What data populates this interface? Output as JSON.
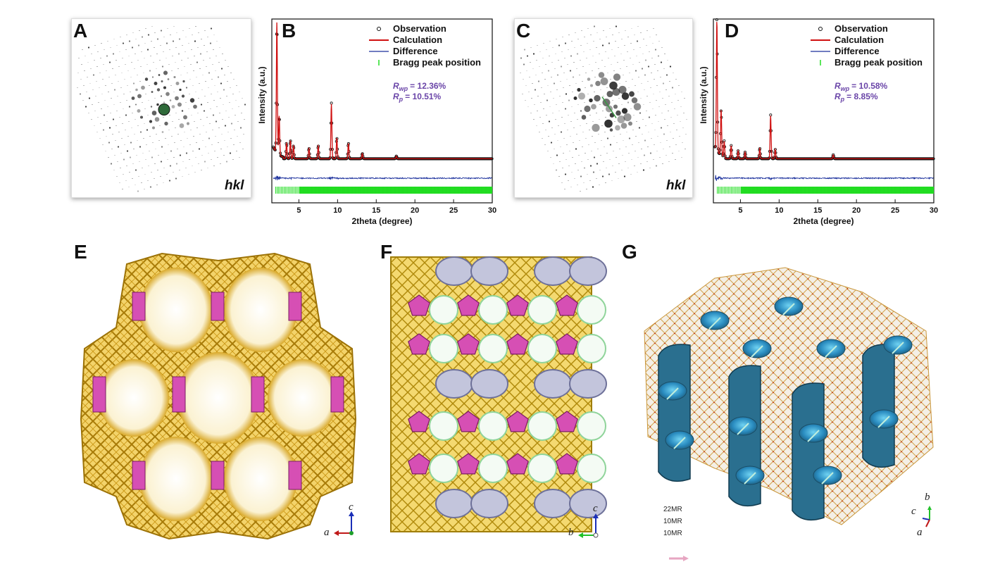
{
  "panels": {
    "A": {
      "letter": "A",
      "label": "hkl"
    },
    "B": {
      "letter": "B"
    },
    "C": {
      "letter": "C",
      "label": "hkl"
    },
    "D": {
      "letter": "D"
    },
    "E": {
      "letter": "E",
      "axis_v": "c",
      "axis_h": "a"
    },
    "F": {
      "letter": "F",
      "axis_v": "c",
      "axis_h": "b"
    },
    "G": {
      "letter": "G",
      "axis_labels": [
        "b",
        "c",
        "a"
      ],
      "pore_labels": [
        "22MR",
        "10MR",
        "10MR"
      ]
    }
  },
  "chart_data": [
    {
      "type": "line",
      "panel": "B",
      "xlabel": "2theta (degree)",
      "ylabel": "Intensity (a.u.)",
      "xlim": [
        1.5,
        30
      ],
      "xticks": [
        5,
        10,
        15,
        20,
        25,
        30
      ],
      "legend": [
        "Observation",
        "Calculation",
        "Difference",
        "Bragg peak position"
      ],
      "stats": [
        {
          "sym": "R",
          "sub": "wp",
          "value": "= 12.36%"
        },
        {
          "sym": "R",
          "sub": "p",
          "value": "= 10.51%"
        }
      ],
      "peaks": [
        {
          "x": 2.15,
          "y": 1.0
        },
        {
          "x": 2.45,
          "y": 0.3
        },
        {
          "x": 3.4,
          "y": 0.12
        },
        {
          "x": 3.9,
          "y": 0.14
        },
        {
          "x": 4.3,
          "y": 0.1
        },
        {
          "x": 6.3,
          "y": 0.08
        },
        {
          "x": 7.5,
          "y": 0.1
        },
        {
          "x": 9.2,
          "y": 0.42
        },
        {
          "x": 9.9,
          "y": 0.16
        },
        {
          "x": 11.4,
          "y": 0.12
        },
        {
          "x": 13.2,
          "y": 0.04
        },
        {
          "x": 17.6,
          "y": 0.02
        }
      ],
      "background": 0.03,
      "colors": {
        "observation": "#111111",
        "calculation": "#d01010",
        "difference": "#1a2f9c",
        "bragg": "#22dd22"
      }
    },
    {
      "type": "line",
      "panel": "D",
      "xlabel": "2theta (degree)",
      "ylabel": "Intensity (a.u.)",
      "xlim": [
        1.5,
        30
      ],
      "xticks": [
        5,
        10,
        15,
        20,
        25,
        30
      ],
      "legend": [
        "Observation",
        "Calculation",
        "Difference",
        "Bragg peak position"
      ],
      "stats": [
        {
          "sym": "R",
          "sub": "wp",
          "value": "= 10.58%"
        },
        {
          "sym": "R",
          "sub": "p",
          "value": "=   8.85%"
        }
      ],
      "peaks": [
        {
          "x": 1.95,
          "y": 1.0
        },
        {
          "x": 2.5,
          "y": 0.35
        },
        {
          "x": 2.9,
          "y": 0.12
        },
        {
          "x": 3.8,
          "y": 0.1
        },
        {
          "x": 4.7,
          "y": 0.06
        },
        {
          "x": 5.6,
          "y": 0.05
        },
        {
          "x": 7.5,
          "y": 0.08
        },
        {
          "x": 8.9,
          "y": 0.33
        },
        {
          "x": 9.5,
          "y": 0.07
        },
        {
          "x": 17.0,
          "y": 0.03
        }
      ],
      "background": 0.03,
      "colors": {
        "observation": "#111111",
        "calculation": "#d01010",
        "difference": "#1a2f9c",
        "bragg": "#22dd22"
      }
    }
  ],
  "colors": {
    "framework_gold": "#e3b420",
    "sbu_pink": "#d64fb4",
    "double_ring_lavender": "#c3c5dc",
    "pore_surface_blue": "#2a6f8f",
    "stats_purple": "#6a45a8"
  }
}
